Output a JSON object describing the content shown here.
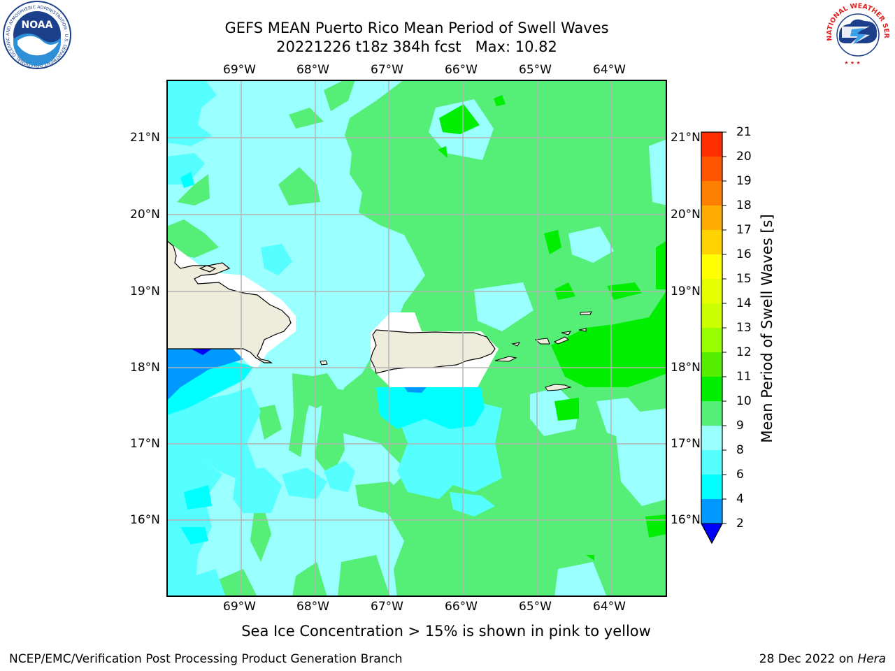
{
  "header": {
    "title_line1": "GEFS MEAN Puerto Rico Mean Period of Swell Waves",
    "title_line2": "20221226 t18z 384h fcst   Max: 10.82"
  },
  "map": {
    "lon_labels": [
      "69°W",
      "68°W",
      "67°W",
      "66°W",
      "65°W",
      "64°W"
    ],
    "lat_labels": [
      "21°N",
      "20°N",
      "19°N",
      "18°N",
      "17°N",
      "16°N"
    ],
    "land_color": "#eeecda",
    "grid_color": "#b4b4b4"
  },
  "colorbar": {
    "label": "Mean Period of Swell Waves [s]",
    "ticks": [
      "21",
      "20",
      "19",
      "18",
      "17",
      "16",
      "15",
      "14",
      "13",
      "12",
      "11",
      "10",
      "9",
      "8",
      "6",
      "4",
      "2"
    ],
    "colors": [
      "#ff0000",
      "#ff2d00",
      "#ff5500",
      "#ff8000",
      "#ffab00",
      "#ffd200",
      "#ffff00",
      "#e6ff00",
      "#ccff00",
      "#99ff00",
      "#55ee00",
      "#00ee00",
      "#55ee77",
      "#99ffff",
      "#55ffff",
      "#00ffff",
      "#0099ff"
    ],
    "extend_color": "#0000ff"
  },
  "note": "Sea Ice Concentration > 15% is shown in pink to yellow",
  "footer": {
    "left": "NCEP/EMC/Verification Post Processing Product Generation Branch",
    "right_date": "28 Dec 2022 on ",
    "right_machine": "Hera"
  },
  "logos": {
    "noaa": "NOAA",
    "noaa_ring": "NATIONAL OCEANIC AND ATMOSPHERIC ADMINISTRATION · U.S. DEPARTMENT OF COMMERCE",
    "nws_ring": "NATIONAL WEATHER SERVICE"
  }
}
